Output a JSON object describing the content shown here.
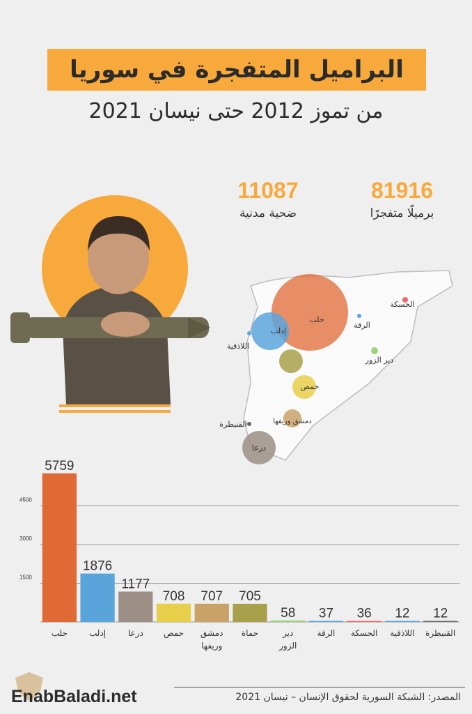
{
  "header": {
    "title": "البراميل المتفجرة في سوريا",
    "subtitle": "من تموز 2012 حتى نيسان 2021"
  },
  "stats": [
    {
      "value": "81916",
      "label": "برميلًا متفجرًا"
    },
    {
      "value": "11087",
      "label": "ضحية مدنية"
    }
  ],
  "map": {
    "labels": [
      {
        "name": "حلب"
      },
      {
        "name": "إدلب"
      },
      {
        "name": "اللاذقية"
      },
      {
        "name": "الرقة"
      },
      {
        "name": "الحسكة"
      },
      {
        "name": "دير الزور"
      },
      {
        "name": "حمص"
      },
      {
        "name": "دمشق وريفها"
      },
      {
        "name": "القنيطرة"
      },
      {
        "name": "درعا"
      }
    ]
  },
  "chart_data": {
    "type": "bar",
    "categories": [
      "حلب",
      "إدلب",
      "درعا",
      "حمص",
      "دمشق وريفها",
      "حماة",
      "دير الزور",
      "الرقة",
      "الحسكة",
      "اللاذقية",
      "القنيطرة"
    ],
    "values": [
      5759,
      1876,
      1177,
      708,
      707,
      705,
      58,
      37,
      36,
      12,
      12
    ],
    "value_labels": [
      "5759",
      "1876",
      "1177",
      "708",
      "707",
      "705",
      "58",
      "37",
      "36",
      "12",
      "12"
    ],
    "colors": [
      "#e06a35",
      "#5aa4dc",
      "#9b8f85",
      "#e8cf4a",
      "#c9a268",
      "#a8a04a",
      "#9fd07a",
      "#5aa4dc",
      "#e86a6a",
      "#5aa4dc",
      "#666666"
    ],
    "y_ticks": [
      1500,
      3000,
      4500
    ],
    "y_tick_labels": [
      "1500",
      "3000",
      "4500"
    ],
    "ylim": [
      0,
      6000
    ],
    "grid": true
  },
  "footer": {
    "logo": "EnabBaladi.net",
    "source": "المصدر: الشبكة السورية لحقوق الإنسان – نيسان 2021"
  },
  "colors": {
    "accent": "#f7a93b"
  }
}
